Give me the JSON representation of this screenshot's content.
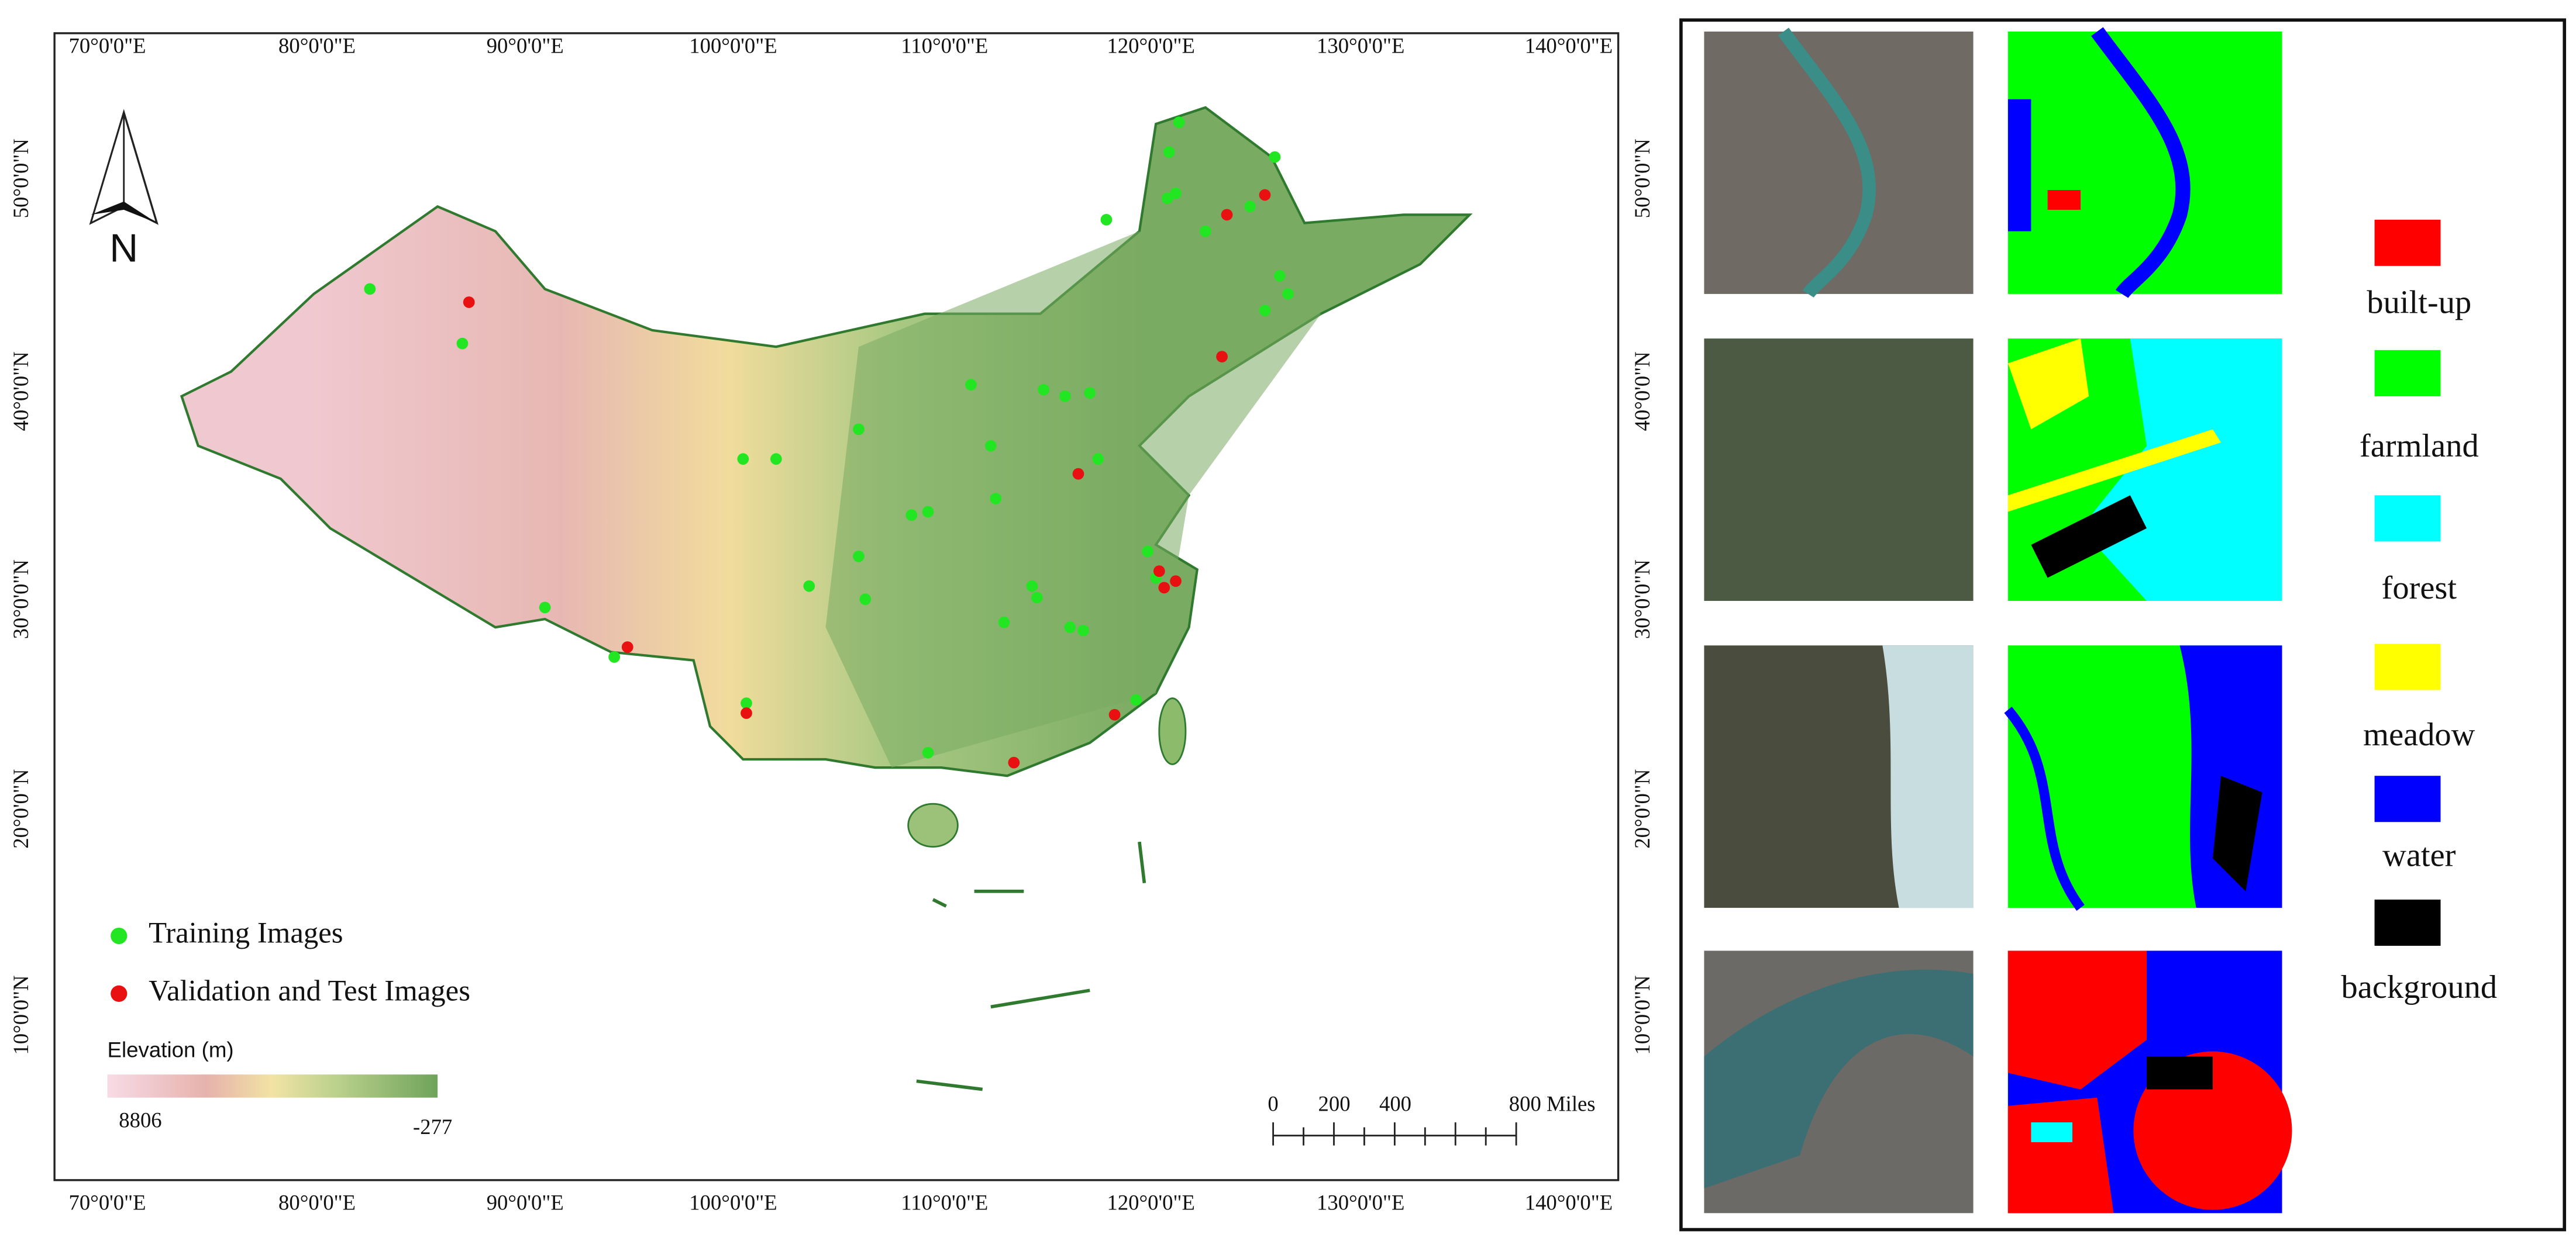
{
  "map": {
    "lon_labels": [
      "70°0'0\"E",
      "80°0'0\"E",
      "90°0'0\"E",
      "100°0'0\"E",
      "110°0'0\"E",
      "120°0'0\"E",
      "130°0'0\"E",
      "140°0'0\"E"
    ],
    "lat_labels": [
      "50°0'0\"N",
      "40°0'0\"N",
      "30°0'0\"N",
      "20°0'0\"N",
      "10°0'0\"N"
    ],
    "north": "N",
    "legend": [
      {
        "name": "Training Images",
        "color": "#22e622"
      },
      {
        "name": "Validation and Test Images",
        "color": "#e81010"
      }
    ],
    "elevation": {
      "title": "Elevation (m)",
      "max": "8806",
      "min": "-277"
    },
    "scale_bar": [
      "0",
      "200",
      "400",
      "800 Miles"
    ]
  },
  "classes": [
    {
      "name": "built-up",
      "color": "#ff0000"
    },
    {
      "name": "farmland",
      "color": "#00ff00"
    },
    {
      "name": "forest",
      "color": "#00ffff"
    },
    {
      "name": "meadow",
      "color": "#ffff00"
    },
    {
      "name": "water",
      "color": "#0000ff"
    },
    {
      "name": "background",
      "color": "#000000"
    }
  ]
}
